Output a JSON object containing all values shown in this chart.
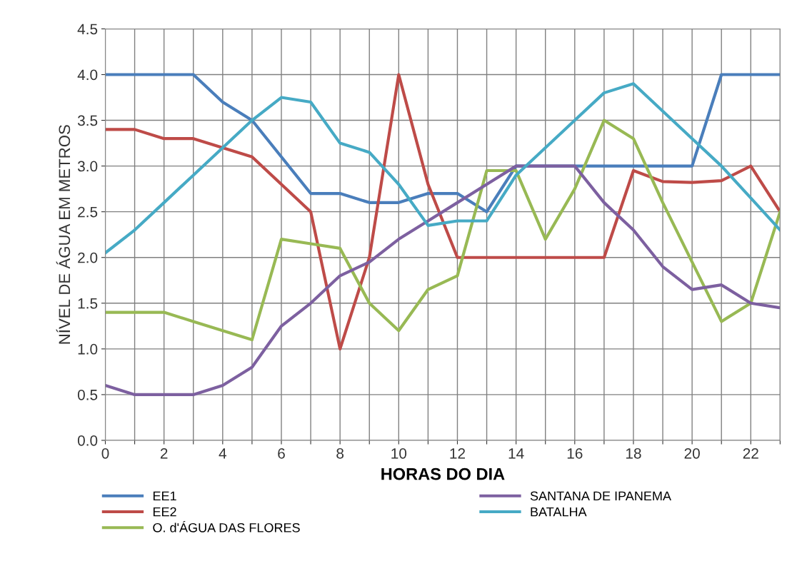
{
  "chart_data": {
    "type": "line",
    "xlabel": "HORAS DO DIA",
    "ylabel": "NÍVEL DE ÁGUA EM METROS",
    "x": [
      0,
      1,
      2,
      3,
      4,
      5,
      6,
      7,
      8,
      9,
      10,
      11,
      12,
      13,
      14,
      15,
      16,
      17,
      18,
      19,
      20,
      21,
      22,
      23
    ],
    "series": [
      {
        "name": "EE1",
        "color": "#4a7ebb",
        "values": [
          4.0,
          4.0,
          4.0,
          4.0,
          3.7,
          3.5,
          3.1,
          2.7,
          2.7,
          2.6,
          2.6,
          2.7,
          2.7,
          2.5,
          3.0,
          3.0,
          3.0,
          3.0,
          3.0,
          3.0,
          3.0,
          4.0,
          4.0,
          4.0
        ]
      },
      {
        "name": "EE2",
        "color": "#be4b48",
        "values": [
          3.4,
          3.4,
          3.3,
          3.3,
          3.2,
          3.1,
          2.8,
          2.5,
          1.0,
          2.0,
          4.0,
          2.8,
          2.0,
          2.0,
          2.0,
          2.0,
          2.0,
          2.0,
          2.95,
          2.83,
          2.82,
          2.84,
          3.0,
          2.5
        ]
      },
      {
        "name": "O. d'ÁGUA DAS FLORES",
        "color": "#98b954",
        "values": [
          1.4,
          1.4,
          1.4,
          1.3,
          1.2,
          1.1,
          2.2,
          2.15,
          2.1,
          1.5,
          1.2,
          1.65,
          1.8,
          2.95,
          2.95,
          2.2,
          2.75,
          3.5,
          3.3,
          2.6,
          1.95,
          1.3,
          1.5,
          2.5
        ]
      },
      {
        "name": "SANTANA DE IPANEMA",
        "color": "#7d60a0",
        "values": [
          0.6,
          0.5,
          0.5,
          0.5,
          0.6,
          0.8,
          1.25,
          1.5,
          1.8,
          1.95,
          2.2,
          2.4,
          2.6,
          2.8,
          3.0,
          3.0,
          3.0,
          2.6,
          2.3,
          1.9,
          1.65,
          1.7,
          1.5,
          1.45
        ]
      },
      {
        "name": "BATALHA",
        "color": "#46aac5",
        "values": [
          2.05,
          2.3,
          2.6,
          2.9,
          3.2,
          3.5,
          3.75,
          3.7,
          3.25,
          3.15,
          2.8,
          2.35,
          2.4,
          2.4,
          2.9,
          3.2,
          3.5,
          3.8,
          3.9,
          3.6,
          3.3,
          3.0,
          2.65,
          2.3
        ]
      }
    ],
    "xlim": [
      0,
      23
    ],
    "xticks": [
      0,
      {
        "value": 1,
        "label": null
      },
      2,
      {
        "value": 3,
        "label": null
      },
      4,
      {
        "value": 5,
        "label": null
      },
      6,
      {
        "value": 7,
        "label": null
      },
      8,
      {
        "value": 9,
        "label": null
      },
      10,
      {
        "value": 11,
        "label": null
      },
      12,
      {
        "value": 13,
        "label": null
      },
      14,
      {
        "value": 15,
        "label": null
      },
      16,
      {
        "value": 17,
        "label": null
      },
      18,
      {
        "value": 19,
        "label": null
      },
      20,
      {
        "value": 21,
        "label": null
      },
      22,
      {
        "value": 23,
        "label": null
      }
    ],
    "ylim": [
      0,
      4.5
    ],
    "yticks": [
      {
        "value": 0,
        "label": "0.0"
      },
      {
        "value": 0.5,
        "label": "0.5"
      },
      {
        "value": 1,
        "label": "1.0"
      },
      {
        "value": 1.5,
        "label": "1.5"
      },
      {
        "value": 2,
        "label": "2.0"
      },
      {
        "value": 2.5,
        "label": "2.5"
      },
      {
        "value": 3,
        "label": "3.0"
      },
      {
        "value": 3.5,
        "label": "3.5"
      },
      {
        "value": 4,
        "label": "4.0"
      },
      {
        "value": 4.5,
        "label": "4.5"
      }
    ],
    "grid": true,
    "legend": "bottom",
    "marker": "none",
    "line_style": "solid"
  }
}
